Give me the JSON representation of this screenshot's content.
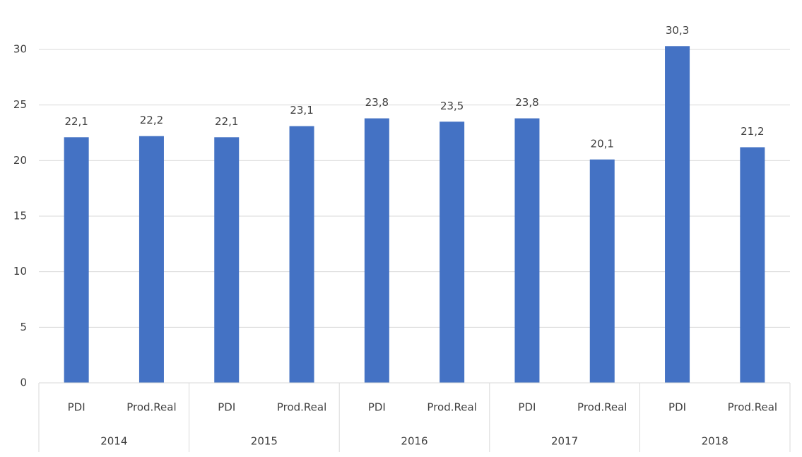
{
  "chart_data": {
    "type": "bar",
    "categories": [
      "PDI",
      "Prod.Real",
      "PDI",
      "Prod.Real",
      "PDI",
      "Prod.Real",
      "PDI",
      "Prod.Real",
      "PDI",
      "Prod.Real"
    ],
    "groups": [
      "2014",
      "2015",
      "2016",
      "2017",
      "2018"
    ],
    "values": [
      22.1,
      22.2,
      22.1,
      23.1,
      23.8,
      23.5,
      23.8,
      20.1,
      30.3,
      21.2
    ],
    "value_labels": [
      "22,1",
      "22,2",
      "22,1",
      "23,1",
      "23,8",
      "23,5",
      "23,8",
      "20,1",
      "30,3",
      "21,2"
    ],
    "color": "#4472c4",
    "ylim": [
      0,
      30
    ],
    "yticks": [
      0,
      5,
      10,
      15,
      20,
      25,
      30
    ],
    "grid": true
  }
}
